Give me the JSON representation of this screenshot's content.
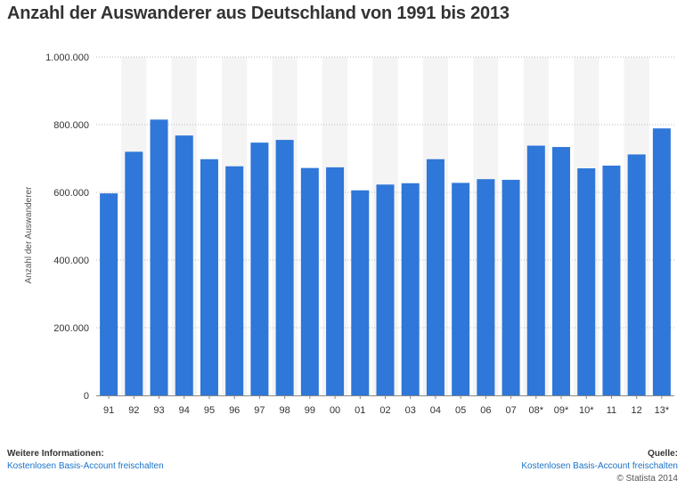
{
  "title": "Anzahl der Auswanderer aus Deutschland von 1991 bis 2013",
  "footer": {
    "info_heading": "Weitere Informationen:",
    "info_link": "Kostenlosen Basis-Account freischalten",
    "source_heading": "Quelle:",
    "source_link": "Kostenlosen Basis-Account freischalten",
    "copyright": "© Statista 2014"
  },
  "colors": {
    "bar": "#2f77d8",
    "band": "#f4f4f4",
    "grid": "#bbbbbb",
    "text": "#333333"
  },
  "chart_data": {
    "type": "bar",
    "title": "Anzahl der Auswanderer aus Deutschland von 1991 bis 2013",
    "xlabel": "",
    "ylabel": "Anzahl der Auswanderer",
    "ylim": [
      0,
      1000000
    ],
    "yticks": [
      0,
      200000,
      400000,
      600000,
      800000,
      1000000
    ],
    "ytick_labels": [
      "0",
      "200.000",
      "400.000",
      "600.000",
      "800.000",
      "1.000.000"
    ],
    "categories": [
      "91",
      "92",
      "93",
      "94",
      "95",
      "96",
      "97",
      "98",
      "99",
      "00",
      "01",
      "02",
      "03",
      "04",
      "05",
      "06",
      "07",
      "08*",
      "09*",
      "10*",
      "11",
      "12",
      "13*"
    ],
    "values": [
      597000,
      720000,
      815000,
      768000,
      698000,
      677000,
      747000,
      755000,
      672000,
      674000,
      606000,
      623000,
      627000,
      698000,
      628000,
      639000,
      637000,
      738000,
      734000,
      671000,
      679000,
      712000,
      789000
    ],
    "grid": true
  }
}
